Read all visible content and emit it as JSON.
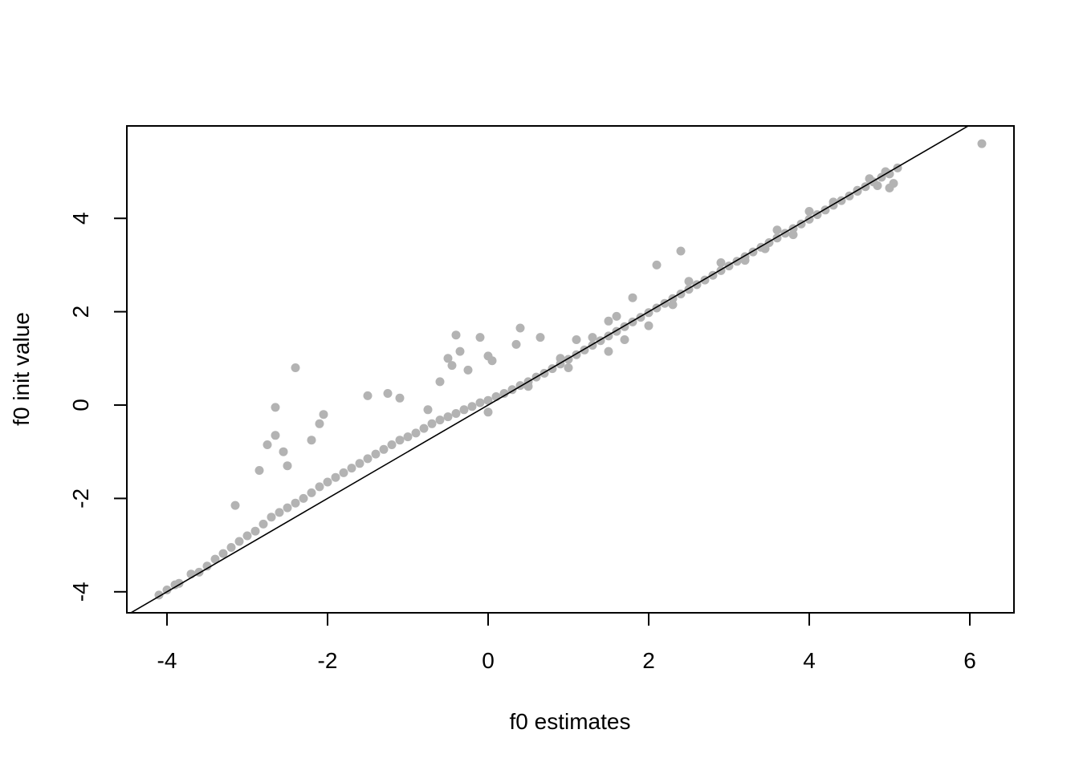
{
  "chart_data": {
    "type": "scatter",
    "title": "",
    "xlabel": "f0 estimates",
    "ylabel": "f0 init value",
    "xlim": [
      -4.5,
      6.55
    ],
    "ylim": [
      -4.45,
      5.98
    ],
    "x_ticks": [
      -4,
      -2,
      0,
      2,
      4,
      6
    ],
    "y_ticks": [
      -4,
      -2,
      0,
      2,
      4
    ],
    "grid": false,
    "legend": "none",
    "point_color": "#b3b3b3",
    "reference_line": {
      "type": "identity",
      "intercept": 0,
      "slope": 1,
      "color": "#000000"
    },
    "series": [
      {
        "points": [
          [
            -4.1,
            -4.07
          ],
          [
            -4.0,
            -3.96
          ],
          [
            -3.9,
            -3.85
          ],
          [
            -3.85,
            -3.82
          ],
          [
            -3.7,
            -3.62
          ],
          [
            -3.6,
            -3.58
          ],
          [
            -3.5,
            -3.45
          ],
          [
            -3.4,
            -3.3
          ],
          [
            -3.3,
            -3.18
          ],
          [
            -3.2,
            -3.05
          ],
          [
            -3.1,
            -2.92
          ],
          [
            -3.0,
            -2.8
          ],
          [
            -2.9,
            -2.7
          ],
          [
            -2.8,
            -2.55
          ],
          [
            -2.7,
            -2.4
          ],
          [
            -2.6,
            -2.3
          ],
          [
            -2.5,
            -2.2
          ],
          [
            -2.4,
            -2.1
          ],
          [
            -2.3,
            -2.0
          ],
          [
            -2.2,
            -1.88
          ],
          [
            -2.1,
            -1.75
          ],
          [
            -2.0,
            -1.65
          ],
          [
            -1.9,
            -1.55
          ],
          [
            -1.8,
            -1.45
          ],
          [
            -1.7,
            -1.35
          ],
          [
            -1.6,
            -1.25
          ],
          [
            -1.5,
            -1.15
          ],
          [
            -1.4,
            -1.05
          ],
          [
            -1.3,
            -0.95
          ],
          [
            -1.2,
            -0.85
          ],
          [
            -1.1,
            -0.75
          ],
          [
            -1.0,
            -0.68
          ],
          [
            -0.9,
            -0.6
          ],
          [
            -0.8,
            -0.5
          ],
          [
            -0.7,
            -0.4
          ],
          [
            -0.6,
            -0.32
          ],
          [
            -0.5,
            -0.25
          ],
          [
            -0.4,
            -0.18
          ],
          [
            -0.3,
            -0.1
          ],
          [
            -0.2,
            -0.03
          ],
          [
            -0.1,
            0.05
          ],
          [
            0.0,
            0.1
          ],
          [
            0.1,
            0.18
          ],
          [
            0.2,
            0.25
          ],
          [
            0.3,
            0.33
          ],
          [
            0.4,
            0.42
          ],
          [
            0.5,
            0.5
          ],
          [
            0.6,
            0.6
          ],
          [
            0.7,
            0.68
          ],
          [
            0.8,
            0.78
          ],
          [
            0.9,
            0.88
          ],
          [
            1.0,
            0.98
          ],
          [
            1.1,
            1.08
          ],
          [
            1.2,
            1.18
          ],
          [
            1.3,
            1.28
          ],
          [
            1.4,
            1.38
          ],
          [
            1.5,
            1.48
          ],
          [
            1.6,
            1.58
          ],
          [
            1.7,
            1.68
          ],
          [
            1.8,
            1.78
          ],
          [
            1.9,
            1.88
          ],
          [
            2.0,
            1.98
          ],
          [
            2.1,
            2.08
          ],
          [
            2.2,
            2.18
          ],
          [
            2.3,
            2.28
          ],
          [
            2.4,
            2.38
          ],
          [
            2.5,
            2.48
          ],
          [
            2.6,
            2.58
          ],
          [
            2.7,
            2.68
          ],
          [
            2.8,
            2.78
          ],
          [
            2.9,
            2.88
          ],
          [
            3.0,
            2.98
          ],
          [
            3.1,
            3.08
          ],
          [
            3.2,
            3.18
          ],
          [
            3.3,
            3.28
          ],
          [
            3.4,
            3.38
          ],
          [
            3.5,
            3.48
          ],
          [
            3.6,
            3.58
          ],
          [
            3.7,
            3.68
          ],
          [
            3.8,
            3.78
          ],
          [
            3.9,
            3.88
          ],
          [
            4.0,
            3.98
          ],
          [
            4.1,
            4.08
          ],
          [
            4.2,
            4.18
          ],
          [
            4.3,
            4.28
          ],
          [
            4.4,
            4.38
          ],
          [
            4.5,
            4.48
          ],
          [
            4.6,
            4.58
          ],
          [
            4.7,
            4.68
          ],
          [
            4.8,
            4.78
          ],
          [
            4.9,
            4.88
          ],
          [
            5.0,
            4.95
          ],
          [
            5.1,
            5.08
          ],
          [
            -3.15,
            -2.15
          ],
          [
            -2.65,
            -0.05
          ],
          [
            -2.4,
            0.8
          ],
          [
            -2.65,
            -0.65
          ],
          [
            -2.75,
            -0.85
          ],
          [
            -2.55,
            -1.0
          ],
          [
            -2.85,
            -1.4
          ],
          [
            -2.5,
            -1.3
          ],
          [
            -2.2,
            -0.75
          ],
          [
            -2.05,
            -0.2
          ],
          [
            -2.1,
            -0.4
          ],
          [
            -1.5,
            0.2
          ],
          [
            -1.25,
            0.25
          ],
          [
            -1.1,
            0.15
          ],
          [
            -0.75,
            -0.1
          ],
          [
            -0.6,
            0.5
          ],
          [
            -0.45,
            0.85
          ],
          [
            -0.4,
            1.5
          ],
          [
            -0.35,
            1.15
          ],
          [
            -0.5,
            1.0
          ],
          [
            -0.25,
            0.75
          ],
          [
            -0.1,
            1.45
          ],
          [
            0.0,
            1.05
          ],
          [
            0.05,
            0.95
          ],
          [
            0.35,
            1.3
          ],
          [
            0.4,
            1.65
          ],
          [
            0.65,
            1.45
          ],
          [
            0.9,
            1.0
          ],
          [
            1.1,
            1.4
          ],
          [
            1.3,
            1.45
          ],
          [
            1.5,
            1.8
          ],
          [
            1.6,
            1.9
          ],
          [
            1.8,
            2.3
          ],
          [
            2.1,
            3.0
          ],
          [
            2.4,
            3.3
          ],
          [
            2.5,
            2.65
          ],
          [
            2.3,
            2.15
          ],
          [
            2.0,
            1.7
          ],
          [
            1.7,
            1.4
          ],
          [
            1.5,
            1.15
          ],
          [
            1.0,
            0.8
          ],
          [
            0.5,
            0.4
          ],
          [
            0.0,
            -0.15
          ],
          [
            2.9,
            3.05
          ],
          [
            3.2,
            3.1
          ],
          [
            3.45,
            3.35
          ],
          [
            3.6,
            3.75
          ],
          [
            3.8,
            3.65
          ],
          [
            4.0,
            4.15
          ],
          [
            4.3,
            4.35
          ],
          [
            4.6,
            4.6
          ],
          [
            4.75,
            4.85
          ],
          [
            4.85,
            4.7
          ],
          [
            5.0,
            4.65
          ],
          [
            5.05,
            4.75
          ],
          [
            4.95,
            5.0
          ],
          [
            6.15,
            5.6
          ]
        ]
      }
    ]
  }
}
